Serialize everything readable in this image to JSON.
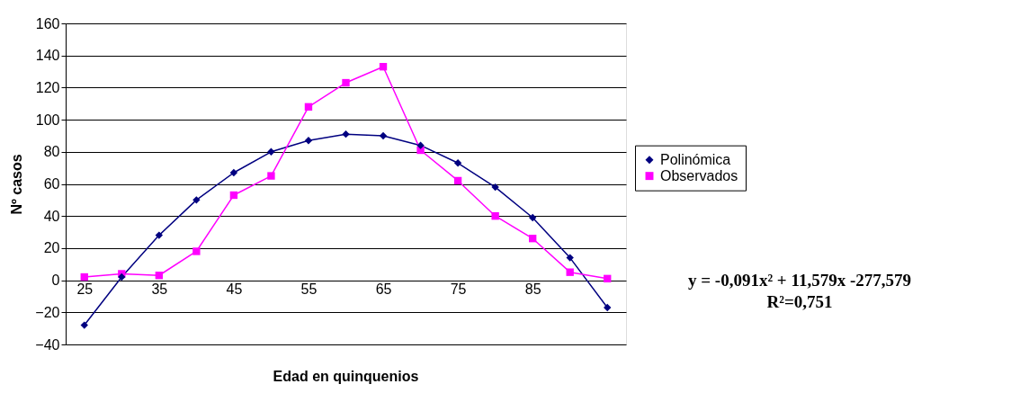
{
  "chart_data": {
    "type": "line",
    "xlabel": "Edad en quinquenios",
    "ylabel": "Nº casos",
    "categories": [
      "25",
      null,
      "35",
      null,
      "45",
      null,
      "55",
      null,
      "65",
      null,
      "75",
      null,
      "85",
      null,
      null
    ],
    "series": [
      {
        "name": "Polinómica",
        "color": "#000080",
        "marker": "diamond",
        "values": [
          -28,
          2,
          28,
          50,
          67,
          80,
          87,
          91,
          90,
          84,
          73,
          58,
          39,
          14,
          -17
        ]
      },
      {
        "name": "Observados",
        "color": "#ff00ff",
        "marker": "square",
        "values": [
          2,
          4,
          3,
          18,
          53,
          65,
          108,
          123,
          133,
          81,
          62,
          40,
          26,
          5,
          1
        ]
      }
    ],
    "ylim": [
      -40,
      160
    ],
    "yticks": [
      -40,
      -20,
      0,
      20,
      40,
      60,
      80,
      100,
      120,
      140,
      160
    ],
    "grid": "y",
    "legend": "right",
    "line_style": "solid",
    "annotations": [
      "y = -0,091x² + 11,579x -277,579",
      "R²=0,751"
    ]
  }
}
